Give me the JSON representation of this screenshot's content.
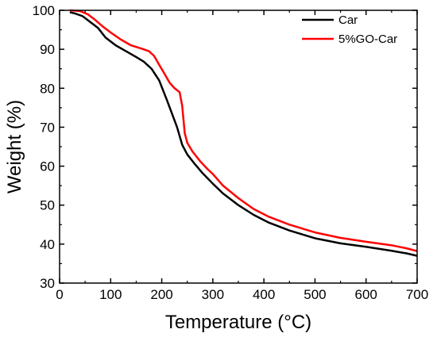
{
  "chart_data": {
    "type": "line",
    "title": "",
    "xlabel": "Temperature (°C)",
    "ylabel": "Weight (%)",
    "xlim": [
      0,
      700
    ],
    "ylim": [
      30,
      100
    ],
    "x_ticks": [
      0,
      100,
      200,
      300,
      400,
      500,
      600,
      700
    ],
    "y_ticks": [
      30,
      40,
      50,
      60,
      70,
      80,
      90,
      100
    ],
    "grid": false,
    "legend_position": "top-right",
    "series": [
      {
        "name": "Car",
        "color": "#000000",
        "x": [
          20,
          30,
          45,
          60,
          75,
          90,
          110,
          130,
          150,
          165,
          180,
          195,
          210,
          220,
          230,
          240,
          250,
          265,
          280,
          300,
          320,
          350,
          380,
          410,
          450,
          500,
          550,
          600,
          650,
          680,
          700
        ],
        "y": [
          99.5,
          99.2,
          98.5,
          97.0,
          95.5,
          93.0,
          91.0,
          89.5,
          88.0,
          86.8,
          85.0,
          82.0,
          77.0,
          73.5,
          70.0,
          65.5,
          63.0,
          60.5,
          58.2,
          55.5,
          53.0,
          50.0,
          47.5,
          45.5,
          43.5,
          41.5,
          40.2,
          39.3,
          38.3,
          37.6,
          37.0
        ]
      },
      {
        "name": "5%GO-Car",
        "color": "#ff0000",
        "x": [
          20,
          40,
          55,
          70,
          85,
          100,
          120,
          140,
          160,
          175,
          185,
          195,
          205,
          215,
          225,
          235,
          240,
          245,
          250,
          260,
          275,
          290,
          300,
          320,
          350,
          380,
          410,
          450,
          500,
          550,
          600,
          650,
          680,
          700
        ],
        "y": [
          100,
          99.8,
          99.0,
          97.5,
          95.8,
          94.3,
          92.5,
          91.0,
          90.2,
          89.5,
          88.3,
          86.0,
          83.8,
          81.5,
          80.0,
          79.0,
          75.5,
          68.5,
          66.0,
          63.8,
          61.3,
          59.2,
          58.0,
          55.0,
          51.8,
          49.0,
          47.0,
          45.0,
          43.0,
          41.6,
          40.6,
          39.7,
          38.9,
          38.2
        ]
      }
    ]
  }
}
